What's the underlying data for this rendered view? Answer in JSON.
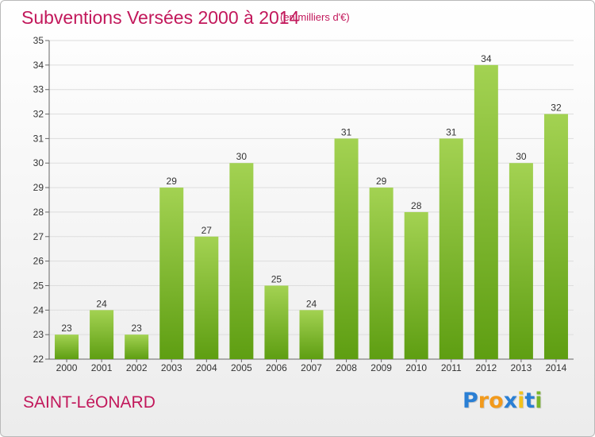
{
  "header": {
    "title": "Subventions Versées 2000 à 2014",
    "unit": "(en milliers d'€)"
  },
  "footer": {
    "commune": "SAINT-LéONARD",
    "logo_letters": [
      "P",
      "r",
      "o",
      "x",
      "i",
      "t",
      "i"
    ]
  },
  "colors": {
    "title": "#c2185b",
    "bar_top": "#a3d252",
    "bar_bottom": "#5e9e12",
    "grid": "#dddddd",
    "logo": [
      "#2a7fd4",
      "#f29a1c",
      "#f29a1c",
      "#2a7fd4",
      "#f2c21c",
      "#2a7fd4",
      "#7ab62a"
    ]
  },
  "chart_data": {
    "type": "bar",
    "title": "Subventions Versées 2000 à 2014",
    "subtitle": "(en milliers d'€)",
    "xlabel": "",
    "ylabel": "",
    "categories": [
      "2000",
      "2001",
      "2002",
      "2003",
      "2004",
      "2005",
      "2006",
      "2007",
      "2008",
      "2009",
      "2010",
      "2011",
      "2012",
      "2013",
      "2014"
    ],
    "values": [
      23,
      24,
      23,
      29,
      27,
      30,
      25,
      24,
      31,
      29,
      28,
      31,
      34,
      30,
      32
    ],
    "ylim": [
      22,
      35
    ],
    "yticks": [
      22,
      23,
      24,
      25,
      26,
      27,
      28,
      29,
      30,
      31,
      32,
      33,
      34,
      35
    ],
    "grid": true,
    "legend": "none"
  }
}
